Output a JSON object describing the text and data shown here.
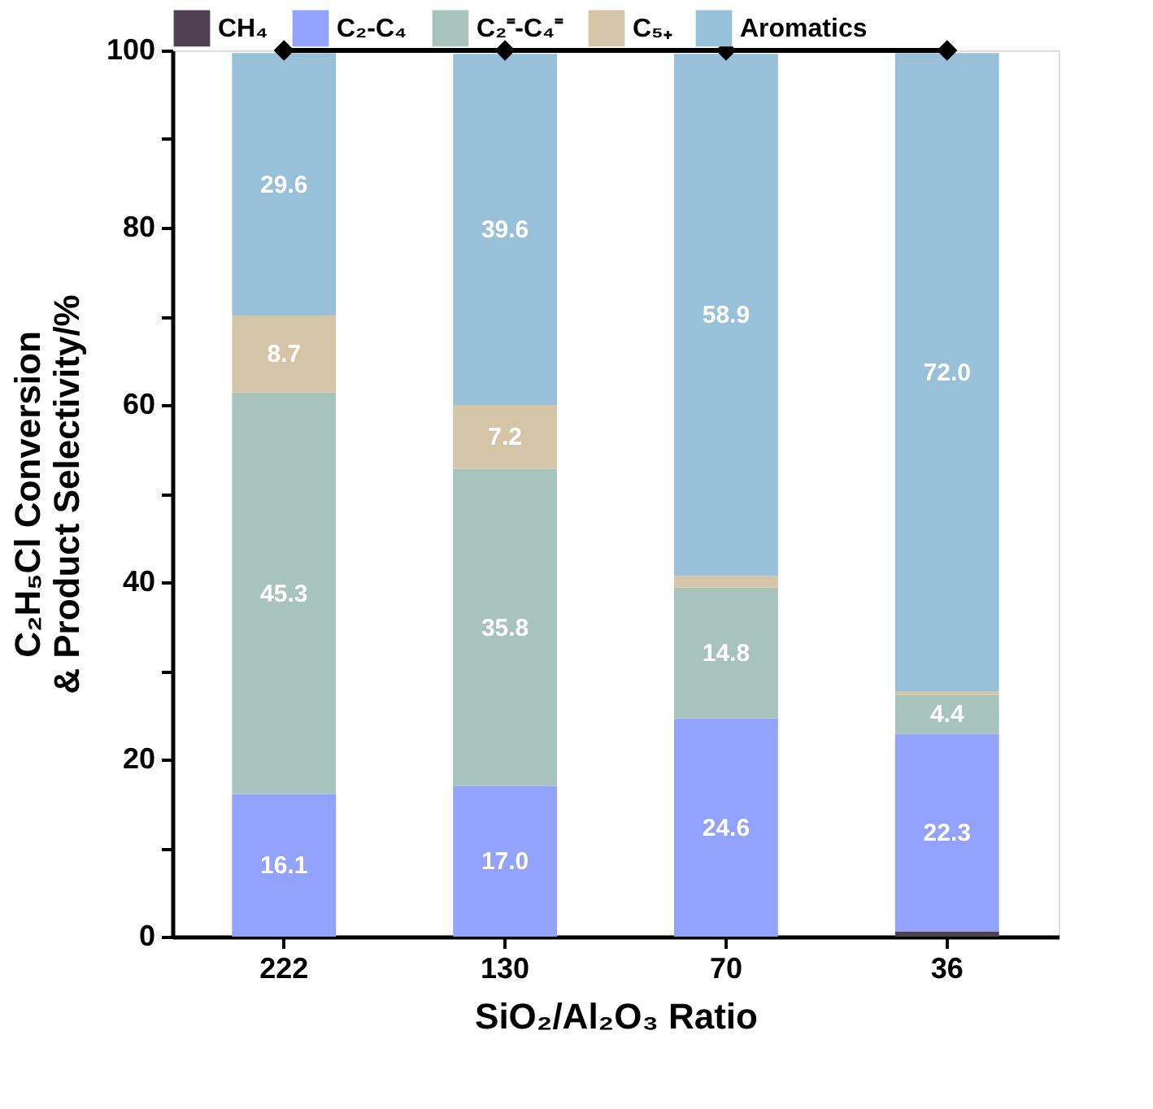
{
  "chart_data": {
    "type": "bar",
    "stacked": true,
    "xlabel": "SiO₂/Al₂O₃ Ratio",
    "ylabel": "C₂H₅Cl Conversion\n& Product Selectivity/%",
    "categories": [
      "222",
      "130",
      "70",
      "36"
    ],
    "ylim": [
      0,
      100
    ],
    "yticks": [
      0,
      {
        "value": 10,
        "label": null
      },
      20,
      {
        "value": 30,
        "label": null
      },
      40,
      {
        "value": 50,
        "label": null
      },
      60,
      {
        "value": 70,
        "label": null
      },
      80,
      {
        "value": 90,
        "label": null
      },
      100
    ],
    "grid": false,
    "legend": "top",
    "series": [
      {
        "name": "CH₄",
        "color": "#4f4152",
        "values": [
          0,
          0,
          0,
          0.6
        ],
        "value_labels": [
          null,
          null,
          null,
          null
        ]
      },
      {
        "name": "C₂-C₄",
        "color": "#92a2fd",
        "values": [
          16.1,
          17.0,
          24.6,
          22.3
        ],
        "value_labels": [
          "16.1",
          "17.0",
          "24.6",
          "22.3"
        ]
      },
      {
        "name": "C₂⁼-C₄⁼",
        "color": "#a8c3bb",
        "values": [
          45.3,
          35.8,
          14.8,
          4.4
        ],
        "value_labels": [
          "45.3",
          "35.8",
          "14.8",
          "4.4"
        ]
      },
      {
        "name": "C₅₊",
        "color": "#d4c5a8",
        "values": [
          8.7,
          7.2,
          1.3,
          0.4
        ],
        "value_labels": [
          "8.7",
          "7.2",
          null,
          null
        ]
      },
      {
        "name": "Aromatics",
        "color": "#98c0d8",
        "values": [
          29.6,
          39.6,
          58.9,
          72.0
        ],
        "value_labels": [
          "29.6",
          "39.6",
          "58.9",
          "72.0"
        ]
      },
      {
        "type": "line",
        "color": "#000000",
        "marker": "diamond",
        "values": [
          100,
          100,
          100,
          100
        ]
      }
    ]
  }
}
